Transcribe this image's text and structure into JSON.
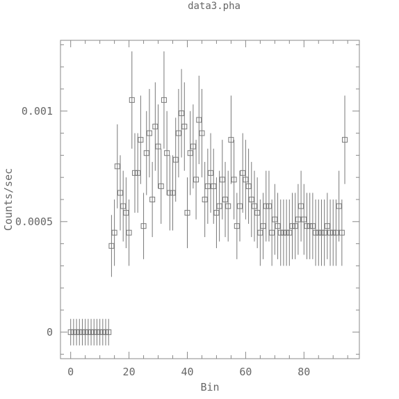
{
  "chart_data": {
    "type": "scatter",
    "title": "data3.pha",
    "xlabel": "Bin",
    "ylabel": "Counts/sec",
    "xlim": [
      -3.5,
      99
    ],
    "ylim": [
      -0.00012,
      0.00132
    ],
    "x_ticks": [
      0,
      20,
      40,
      60,
      80
    ],
    "x_tick_labels": [
      "0",
      "20",
      "40",
      "60",
      "80"
    ],
    "y_ticks": [
      0,
      0.0005,
      0.001
    ],
    "y_tick_labels": [
      "0",
      "0.0005",
      "0.001"
    ],
    "grid": false,
    "legend": "none",
    "marker": "square",
    "color": "#777777",
    "series": [
      {
        "x": [
          0,
          1,
          2,
          3,
          4,
          5,
          6,
          7,
          8,
          9,
          10,
          11,
          12,
          13,
          14,
          15,
          16,
          17,
          18,
          19,
          20,
          21,
          22,
          23,
          24,
          25,
          26,
          27,
          28,
          29,
          30,
          31,
          32,
          33,
          34,
          35,
          36,
          37,
          38,
          39,
          40,
          41,
          42,
          43,
          44,
          45,
          46,
          47,
          48,
          49,
          50,
          51,
          52,
          53,
          54,
          55,
          56,
          57,
          58,
          59,
          60,
          61,
          62,
          63,
          64,
          65,
          66,
          67,
          68,
          69,
          70,
          71,
          72,
          73,
          74,
          75,
          76,
          77,
          78,
          79,
          80,
          81,
          82,
          83,
          84,
          85,
          86,
          87,
          88,
          89,
          90,
          91,
          92,
          93,
          94
        ],
        "y": [
          0,
          0,
          0,
          0,
          0,
          0,
          0,
          0,
          0,
          0,
          0,
          0,
          0,
          0,
          0.00039,
          0.00045,
          0.00075,
          0.00063,
          0.00057,
          0.00054,
          0.00045,
          0.00105,
          0.00072,
          0.00072,
          0.00087,
          0.00048,
          0.00081,
          0.0009,
          0.0006,
          0.00093,
          0.00084,
          0.00066,
          0.00105,
          0.00081,
          0.00063,
          0.00063,
          0.00078,
          0.0009,
          0.00099,
          0.00093,
          0.00054,
          0.00081,
          0.00084,
          0.00069,
          0.00096,
          0.0009,
          0.0006,
          0.00066,
          0.00072,
          0.00066,
          0.00054,
          0.00057,
          0.00069,
          0.0006,
          0.00057,
          0.00087,
          0.00069,
          0.00048,
          0.00057,
          0.00072,
          0.00069,
          0.00066,
          0.0006,
          0.00057,
          0.00054,
          0.00045,
          0.00048,
          0.00057,
          0.00057,
          0.00045,
          0.00051,
          0.00048,
          0.00045,
          0.00045,
          0.00045,
          0.00045,
          0.00048,
          0.00048,
          0.00051,
          0.00057,
          0.00051,
          0.00048,
          0.00048,
          0.00048,
          0.00045,
          0.00045,
          0.00045,
          0.00045,
          0.00048,
          0.00045,
          0.00045,
          0.00045,
          0.00057,
          0.00045,
          0.00087
        ],
        "yerr": [
          6e-05,
          6e-05,
          6e-05,
          6e-05,
          6e-05,
          6e-05,
          6e-05,
          6e-05,
          6e-05,
          6e-05,
          6e-05,
          6e-05,
          6e-05,
          6e-05,
          0.00014,
          0.00015,
          0.00019,
          0.00017,
          0.00016,
          0.00016,
          0.00015,
          0.00022,
          0.00018,
          0.00018,
          0.0002,
          0.00015,
          0.00019,
          0.0002,
          0.00017,
          0.0002,
          0.00019,
          0.00017,
          0.00022,
          0.00019,
          0.00017,
          0.00017,
          0.00019,
          0.0002,
          0.0002,
          0.0002,
          0.00016,
          0.00019,
          0.00019,
          0.00018,
          0.0002,
          0.0002,
          0.00017,
          0.00017,
          0.00018,
          0.00017,
          0.00016,
          0.00016,
          0.00018,
          0.00017,
          0.00016,
          0.0002,
          0.00018,
          0.00015,
          0.00016,
          0.00018,
          0.00018,
          0.00017,
          0.00017,
          0.00016,
          0.00016,
          0.00015,
          0.00015,
          0.00016,
          0.00016,
          0.00015,
          0.00016,
          0.00015,
          0.00015,
          0.00015,
          0.00015,
          0.00015,
          0.00015,
          0.00015,
          0.00016,
          0.00016,
          0.00016,
          0.00015,
          0.00015,
          0.00015,
          0.00015,
          0.00015,
          0.00015,
          0.00015,
          0.00015,
          0.00015,
          0.00015,
          0.00015,
          0.00016,
          0.00015,
          0.0002
        ]
      }
    ]
  }
}
